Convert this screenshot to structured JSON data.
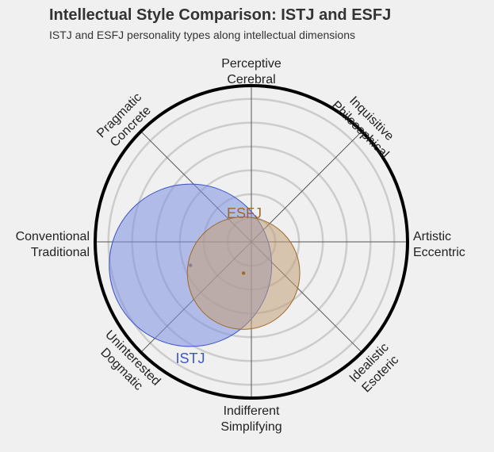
{
  "chart_data": {
    "type": "scatter",
    "title": "Intellectual Style Comparison: ISTJ and ESFJ",
    "subtitle": "ISTJ and ESFJ personality types along intellectual dimensions",
    "axis_labels": [
      [
        "Perceptive",
        "Cerebral"
      ],
      [
        "Inquisitive",
        "Philosophical"
      ],
      [
        "Artistic",
        "Eccentric"
      ],
      [
        "Idealistic",
        "Esoteric"
      ],
      [
        "Indifferent",
        "Simplifying"
      ],
      [
        "Uninterested",
        "Dogmatic"
      ],
      [
        "Conventional",
        "Traditional"
      ],
      [
        "Pragmatic",
        "Concrete"
      ]
    ],
    "x_range": [
      -1,
      1
    ],
    "y_range": [
      -1,
      1
    ],
    "grid": true,
    "series": [
      {
        "name": "ISTJ",
        "x": -0.39,
        "y": -0.15,
        "radius": 0.52,
        "color": "#3b56c8",
        "fill": "#7d8fe0"
      },
      {
        "name": "ESFJ",
        "x": -0.05,
        "y": -0.2,
        "radius": 0.36,
        "color": "#a0682a",
        "fill": "#c2a178"
      }
    ]
  }
}
